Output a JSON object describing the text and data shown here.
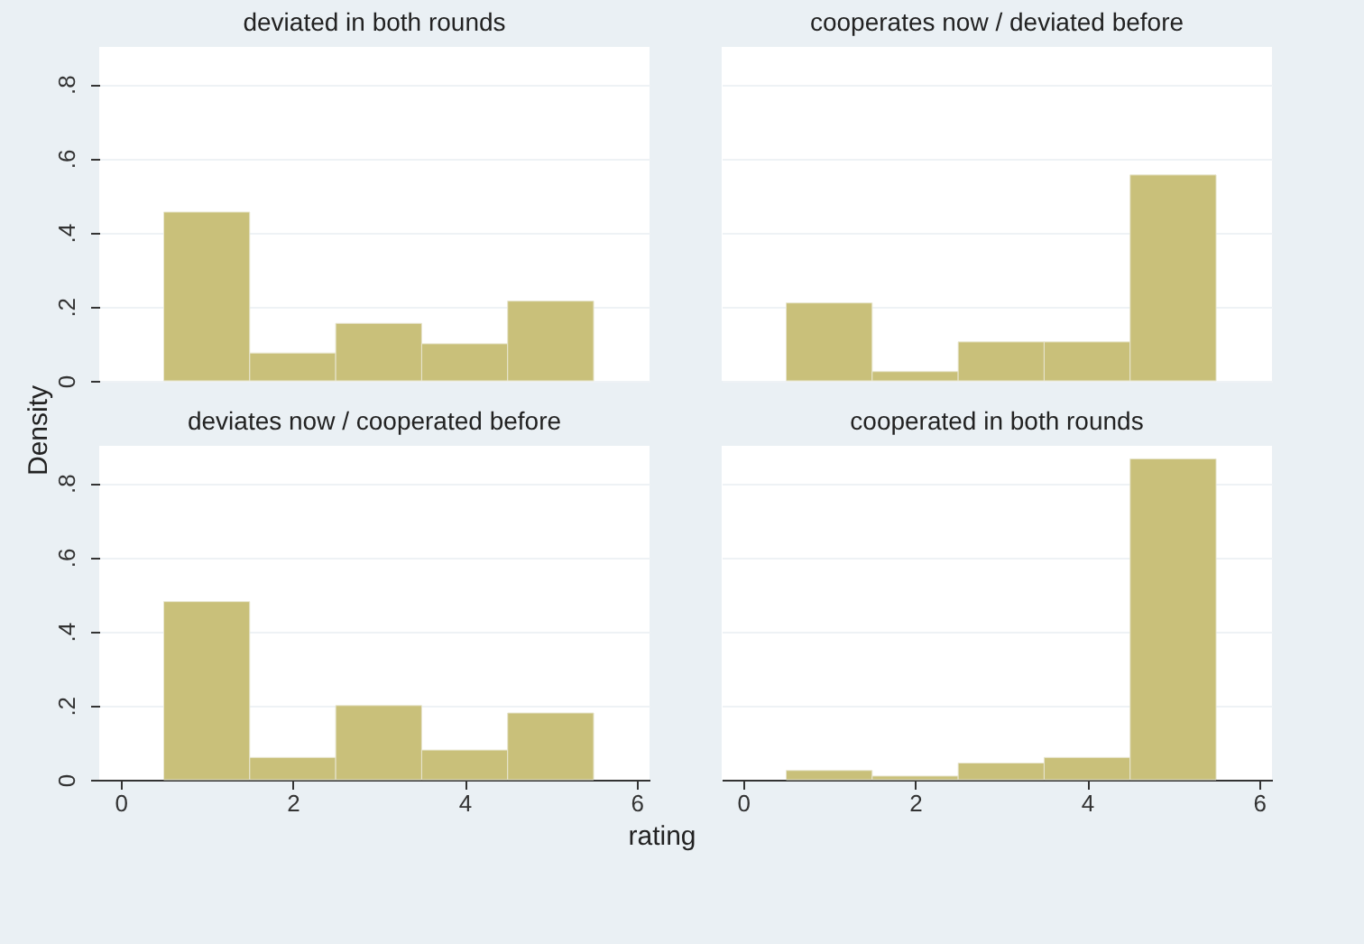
{
  "chart_data": [
    {
      "type": "histogram",
      "title": "deviated in both rounds",
      "ylabel": "Density",
      "bins": [
        0.5,
        1.5,
        2.5,
        3.5,
        4.5,
        5.5
      ],
      "values": [
        0.455,
        0.075,
        0.155,
        0.1,
        0.215
      ],
      "color": "#c9c07a",
      "xlim": [
        -0.25,
        6.15
      ],
      "ylim": [
        0,
        0.9
      ],
      "xticks": [
        0,
        2,
        4,
        6
      ],
      "yticks": [
        0,
        {
          "value": 0.2,
          "label": ".2"
        },
        {
          "value": 0.4,
          "label": ".4"
        },
        {
          "value": 0.6,
          "label": ".6"
        },
        {
          "value": 0.8,
          "label": ".8"
        }
      ],
      "grid": "y",
      "tick_labels": "y"
    },
    {
      "type": "histogram",
      "title": "cooperates now  / deviated before",
      "bins": [
        0.5,
        1.5,
        2.5,
        3.5,
        4.5,
        5.5
      ],
      "values": [
        0.21,
        0.025,
        0.105,
        0.105,
        0.555
      ],
      "color": "#c9c07a",
      "xlim": [
        -0.25,
        6.15
      ],
      "ylim": [
        0,
        0.9
      ],
      "xticks": [
        0,
        2,
        4,
        6
      ],
      "yticks": [
        0,
        0.2,
        0.4,
        0.6,
        0.8
      ],
      "grid": "y",
      "tick_labels": false
    },
    {
      "type": "histogram",
      "title": "deviates now / cooperated before",
      "xlabel": "rating",
      "bins": [
        0.5,
        1.5,
        2.5,
        3.5,
        4.5,
        5.5
      ],
      "values": [
        0.48,
        0.06,
        0.2,
        0.08,
        0.18
      ],
      "color": "#c9c07a",
      "xlim": [
        -0.25,
        6.15
      ],
      "ylim": [
        0,
        0.9
      ],
      "xticks": [
        0,
        2,
        4,
        6
      ],
      "yticks": [
        0,
        {
          "value": 0.2,
          "label": ".2"
        },
        {
          "value": 0.4,
          "label": ".4"
        },
        {
          "value": 0.6,
          "label": ".6"
        },
        {
          "value": 0.8,
          "label": ".8"
        }
      ],
      "grid": "y"
    },
    {
      "type": "histogram",
      "title": "cooperated in both rounds",
      "bins": [
        0.5,
        1.5,
        2.5,
        3.5,
        4.5,
        5.5
      ],
      "values": [
        0.025,
        0.01,
        0.045,
        0.06,
        0.865
      ],
      "color": "#c9c07a",
      "xlim": [
        -0.25,
        6.15
      ],
      "ylim": [
        0,
        0.9
      ],
      "xticks": [
        0,
        2,
        4,
        6
      ],
      "yticks": [
        0,
        0.2,
        0.4,
        0.6,
        0.8
      ],
      "grid": "y",
      "tick_labels": "x"
    }
  ]
}
